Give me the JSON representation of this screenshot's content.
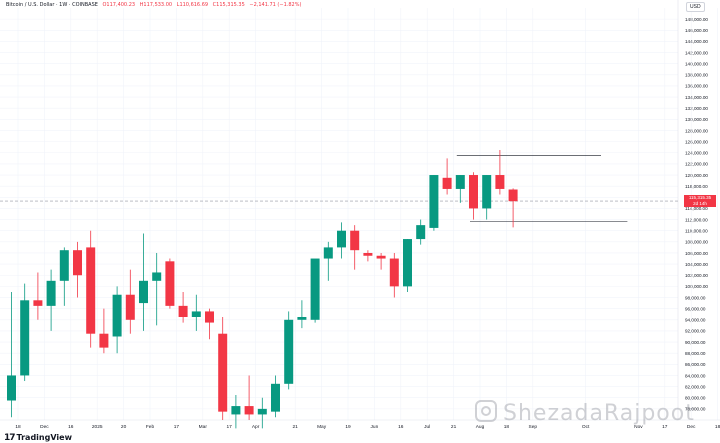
{
  "header": {
    "symbol": "Bitcoin / U.S. Dollar · 1W · COINBASE",
    "open": "O117,400.23",
    "high": "H117,533.00",
    "low": "L110,616.69",
    "close": "C115,315.35",
    "change": "−2,141.71 (−1.82%)"
  },
  "currency": "USD",
  "price_tag": {
    "line1": "115,315.35",
    "line2": "2d 14h"
  },
  "branding": {
    "logo": "TradingView",
    "logo_mark": "17"
  },
  "watermark": "ShezadaRajpoot",
  "colors": {
    "up": "#089981",
    "down": "#f23645",
    "grid": "#f0f3fa",
    "axis_text": "#131722"
  },
  "chart_data": {
    "type": "candlestick",
    "interval": "1W",
    "y_axis": {
      "ylim": [
        76000,
        150000
      ],
      "ticks": [
        78000,
        80000,
        82000,
        84000,
        86000,
        88000,
        90000,
        92000,
        94000,
        96000,
        98000,
        100000,
        102000,
        104000,
        106000,
        108000,
        110000,
        112000,
        114000,
        116000,
        118000,
        120000,
        122000,
        124000,
        126000,
        128000,
        130000,
        132000,
        134000,
        136000,
        138000,
        140000,
        142000,
        144000,
        146000,
        148000
      ],
      "tick_labels": [
        "78,000.00",
        "80,000.00",
        "82,000.00",
        "84,000.00",
        "86,000.00",
        "88,000.00",
        "90,000.00",
        "92,000.00",
        "94,000.00",
        "96,000.00",
        "98,000.00",
        "100,000.00",
        "102,000.00",
        "104,000.00",
        "106,000.00",
        "108,000.00",
        "110,000.00",
        "112,000.00",
        "114,000.00",
        "116,000.00",
        "118,000.00",
        "120,000.00",
        "122,000.00",
        "124,000.00",
        "126,000.00",
        "128,000.00",
        "130,000.00",
        "132,000.00",
        "134,000.00",
        "136,000.00",
        "138,000.00",
        "140,000.00",
        "142,000.00",
        "144,000.00",
        "146,000.00",
        "148,000.00"
      ]
    },
    "x_axis": {
      "labels": [
        "18",
        "Dec",
        "16",
        "2025",
        "20",
        "Feb",
        "17",
        "Mar",
        "17",
        "Apr",
        "21",
        "May",
        "19",
        "Jun",
        "16",
        "Jul",
        "21",
        "Aug",
        "18",
        "Sep",
        "Oct",
        "Nov",
        "17",
        "Dec",
        "18"
      ],
      "label_weeks": [
        0,
        2,
        4,
        6,
        8,
        10,
        12,
        14,
        16,
        18,
        21,
        23,
        25,
        27,
        29,
        31,
        33,
        35,
        37,
        39,
        43,
        47,
        49,
        51,
        53
      ]
    },
    "candles": [
      {
        "week": 0,
        "o": 79500,
        "h": 99000,
        "l": 76500,
        "c": 84000
      },
      {
        "week": 1,
        "o": 84000,
        "h": 100500,
        "l": 83000,
        "c": 97500
      },
      {
        "week": 2,
        "o": 97500,
        "h": 102500,
        "l": 94000,
        "c": 96500
      },
      {
        "week": 3,
        "o": 96500,
        "h": 103000,
        "l": 92000,
        "c": 101000
      },
      {
        "week": 4,
        "o": 101000,
        "h": 107000,
        "l": 96500,
        "c": 106500
      },
      {
        "week": 5,
        "o": 106500,
        "h": 108000,
        "l": 98000,
        "c": 102000
      },
      {
        "week": 6,
        "o": 107000,
        "h": 110000,
        "l": 89000,
        "c": 91500
      },
      {
        "week": 7,
        "o": 91500,
        "h": 96000,
        "l": 88000,
        "c": 89000
      },
      {
        "week": 8,
        "o": 91000,
        "h": 100000,
        "l": 88000,
        "c": 98500
      },
      {
        "week": 9,
        "o": 98500,
        "h": 103000,
        "l": 91500,
        "c": 94000
      },
      {
        "week": 10,
        "o": 97000,
        "h": 109500,
        "l": 92000,
        "c": 101000
      },
      {
        "week": 11,
        "o": 101000,
        "h": 106000,
        "l": 93000,
        "c": 102500
      },
      {
        "week": 12,
        "o": 104500,
        "h": 105000,
        "l": 96000,
        "c": 96500
      },
      {
        "week": 13,
        "o": 96500,
        "h": 99000,
        "l": 93500,
        "c": 94500
      },
      {
        "week": 14,
        "o": 94500,
        "h": 98500,
        "l": 92000,
        "c": 95500
      },
      {
        "week": 15,
        "o": 95500,
        "h": 96000,
        "l": 90500,
        "c": 93500
      },
      {
        "week": 16,
        "o": 91500,
        "h": 94500,
        "l": 76000,
        "c": 77500
      },
      {
        "week": 17,
        "o": 77000,
        "h": 80500,
        "l": 74500,
        "c": 78500
      },
      {
        "week": 18,
        "o": 78500,
        "h": 84000,
        "l": 76000,
        "c": 77000
      },
      {
        "week": 19,
        "o": 77000,
        "h": 80000,
        "l": 74500,
        "c": 78000
      },
      {
        "week": 20,
        "o": 77500,
        "h": 84000,
        "l": 76500,
        "c": 82500
      },
      {
        "week": 21,
        "o": 82500,
        "h": 95500,
        "l": 81500,
        "c": 94000
      },
      {
        "week": 22,
        "o": 94000,
        "h": 97500,
        "l": 92500,
        "c": 94500
      },
      {
        "week": 23,
        "o": 94000,
        "h": 104500,
        "l": 93500,
        "c": 105000
      },
      {
        "week": 24,
        "o": 105000,
        "h": 108000,
        "l": 101000,
        "c": 107000
      },
      {
        "week": 25,
        "o": 107000,
        "h": 111500,
        "l": 105000,
        "c": 110000
      },
      {
        "week": 26,
        "o": 110000,
        "h": 111000,
        "l": 103000,
        "c": 106500
      },
      {
        "week": 27,
        "o": 106000,
        "h": 106500,
        "l": 104500,
        "c": 105500
      },
      {
        "week": 28,
        "o": 105500,
        "h": 106000,
        "l": 103000,
        "c": 105000
      },
      {
        "week": 29,
        "o": 105000,
        "h": 106000,
        "l": 98000,
        "c": 100000
      },
      {
        "week": 30,
        "o": 100000,
        "h": 108500,
        "l": 99000,
        "c": 108500
      },
      {
        "week": 31,
        "o": 108500,
        "h": 112000,
        "l": 107500,
        "c": 111000
      },
      {
        "week": 32,
        "o": 110500,
        "h": 120000,
        "l": 110000,
        "c": 120000
      },
      {
        "week": 33,
        "o": 119500,
        "h": 123000,
        "l": 116500,
        "c": 117500
      },
      {
        "week": 34,
        "o": 117500,
        "h": 120000,
        "l": 115000,
        "c": 120000
      },
      {
        "week": 35,
        "o": 120000,
        "h": 120500,
        "l": 112000,
        "c": 114000
      },
      {
        "week": 36,
        "o": 114000,
        "h": 120000,
        "l": 112000,
        "c": 120000
      },
      {
        "week": 37,
        "o": 120000,
        "h": 124500,
        "l": 116500,
        "c": 117500
      },
      {
        "week": 38,
        "o": 117400,
        "h": 117600,
        "l": 110600,
        "c": 115300
      }
    ],
    "levels": [
      {
        "price": 123500,
        "from_week": 34,
        "to_week": 45
      },
      {
        "price": 111700,
        "from_week": 35,
        "to_week": 47
      }
    ],
    "last_price": 115315.35
  }
}
